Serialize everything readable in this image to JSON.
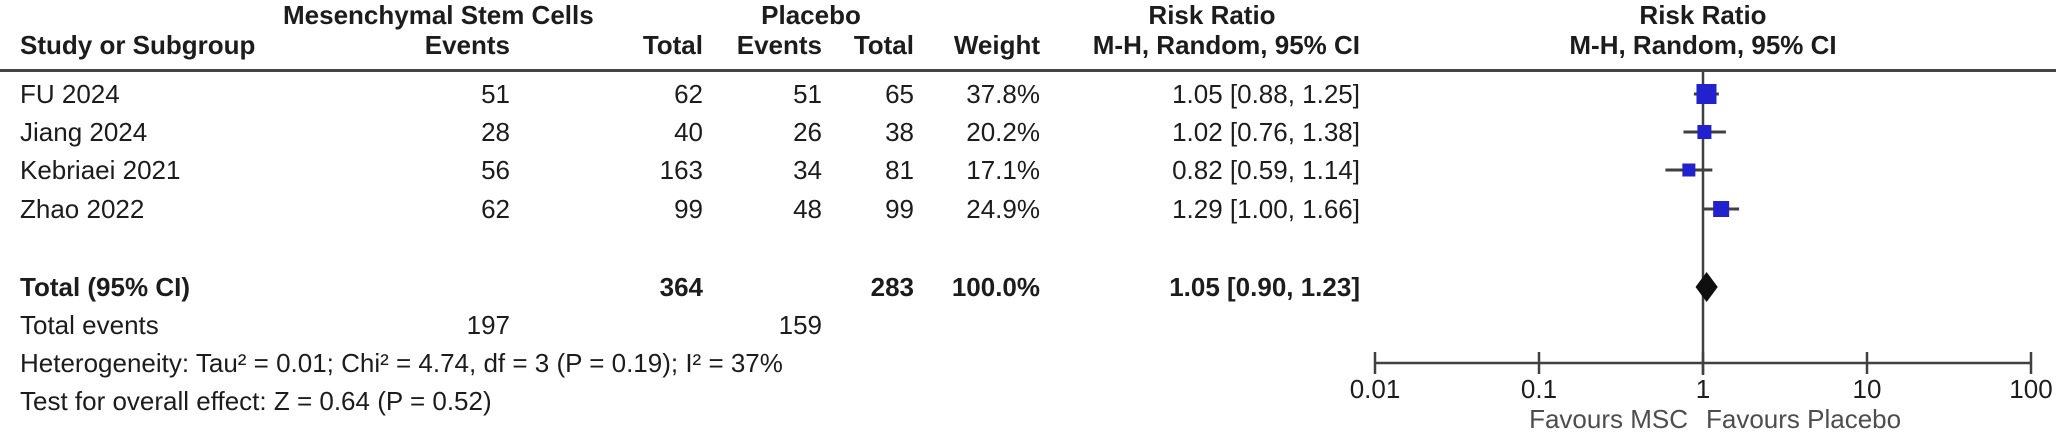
{
  "header": {
    "group1": "Mesenchymal Stem Cells",
    "group2": "Placebo",
    "effect_title_left": "Risk Ratio",
    "effect_title_right": "Risk Ratio",
    "method_left": "M-H, Random, 95% CI",
    "method_right": "M-H, Random, 95% CI",
    "study_col": "Study or Subgroup",
    "events_col": "Events",
    "total_col": "Total",
    "weight_col": "Weight"
  },
  "table": {
    "studies": [
      {
        "name": "FU 2024",
        "events1": "51",
        "total1": "62",
        "events2": "51",
        "total2": "65",
        "weight": "37.8%",
        "ci_text": "1.05 [0.88, 1.25]"
      },
      {
        "name": "Jiang 2024",
        "events1": "28",
        "total1": "40",
        "events2": "26",
        "total2": "38",
        "weight": "20.2%",
        "ci_text": "1.02 [0.76, 1.38]"
      },
      {
        "name": "Kebriaei 2021",
        "events1": "56",
        "total1": "163",
        "events2": "34",
        "total2": "81",
        "weight": "17.1%",
        "ci_text": "0.82 [0.59, 1.14]"
      },
      {
        "name": "Zhao 2022",
        "events1": "62",
        "total1": "99",
        "events2": "48",
        "total2": "99",
        "weight": "24.9%",
        "ci_text": "1.29 [1.00, 1.66]"
      }
    ],
    "total": {
      "name": "Total (95% CI)",
      "total1": "364",
      "total2": "283",
      "weight": "100.0%",
      "ci_text": "1.05 [0.90, 1.23]"
    },
    "total_events": {
      "label": "Total events",
      "value1": "197",
      "value2": "159"
    },
    "heterogeneity": "Heterogeneity: Tau² = 0.01; Chi² = 4.74, df = 3 (P = 0.19); I² = 37%",
    "overall_effect": "Test for overall effect: Z = 0.64 (P = 0.52)"
  },
  "axis": {
    "ticks": [
      "0.01",
      "0.1",
      "1",
      "10",
      "100"
    ],
    "favours_left": "Favours MSC",
    "favours_right": "Favours Placebo"
  },
  "colors": {
    "square": "#2121ce",
    "diamond": "#0f0f0f",
    "line": "#404040",
    "text": "#1c1c1c"
  },
  "chart_data": {
    "type": "scatter",
    "subtype": "forest-plot",
    "title": "Risk Ratio",
    "legend": "M-H, Random, 95% CI",
    "x_scale": "log10",
    "xlim": [
      0.01,
      100
    ],
    "x_ticks": [
      0.01,
      0.1,
      1,
      10,
      100
    ],
    "xlabel_left": "Favours MSC",
    "xlabel_right": "Favours Placebo",
    "series": [
      {
        "name": "FU 2024",
        "rr": 1.05,
        "ci": [
          0.88,
          1.25
        ],
        "weight_pct": 37.8
      },
      {
        "name": "Jiang 2024",
        "rr": 1.02,
        "ci": [
          0.76,
          1.38
        ],
        "weight_pct": 20.2
      },
      {
        "name": "Kebriaei 2021",
        "rr": 0.82,
        "ci": [
          0.59,
          1.14
        ],
        "weight_pct": 17.1
      },
      {
        "name": "Zhao 2022",
        "rr": 1.29,
        "ci": [
          1.0,
          1.66
        ],
        "weight_pct": 24.9
      }
    ],
    "total": {
      "name": "Total (95% CI)",
      "rr": 1.05,
      "ci": [
        0.9,
        1.23
      ],
      "weight_pct": 100.0
    }
  }
}
